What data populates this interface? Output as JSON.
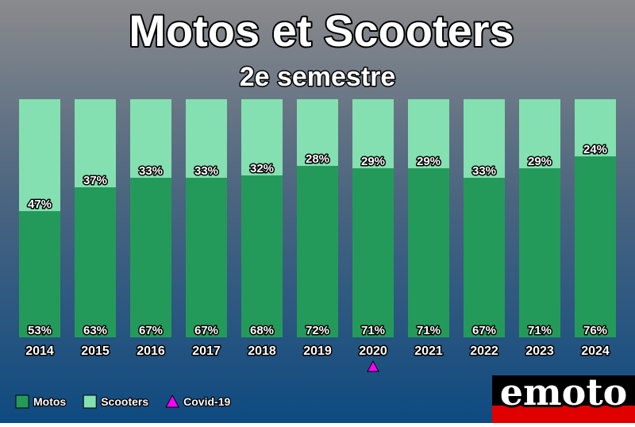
{
  "chart_data": {
    "type": "stacked_bar",
    "title": "Motos et Scooters",
    "subtitle": "2e semestre",
    "categories": [
      "2014",
      "2015",
      "2016",
      "2017",
      "2018",
      "2019",
      "2020",
      "2021",
      "2022",
      "2023",
      "2024"
    ],
    "series": [
      {
        "name": "Motos",
        "color": "#249a5a",
        "values": [
          53,
          63,
          67,
          67,
          68,
          72,
          71,
          71,
          67,
          71,
          76
        ],
        "value_labels": [
          "53%",
          "63%",
          "67%",
          "67%",
          "68%",
          "72%",
          "71%",
          "71%",
          "67%",
          "71%",
          "76%"
        ]
      },
      {
        "name": "Scooters",
        "color": "#84e0b0",
        "values": [
          47,
          37,
          33,
          33,
          32,
          28,
          29,
          29,
          33,
          29,
          24
        ],
        "value_labels": [
          "47%",
          "37%",
          "33%",
          "33%",
          "32%",
          "28%",
          "29%",
          "29%",
          "33%",
          "29%",
          "24%"
        ]
      }
    ],
    "ylim": [
      0,
      100
    ],
    "annotation": {
      "label": "Covid-19",
      "category": "2020",
      "color": "#ff00ff"
    },
    "logo": "emoto"
  }
}
